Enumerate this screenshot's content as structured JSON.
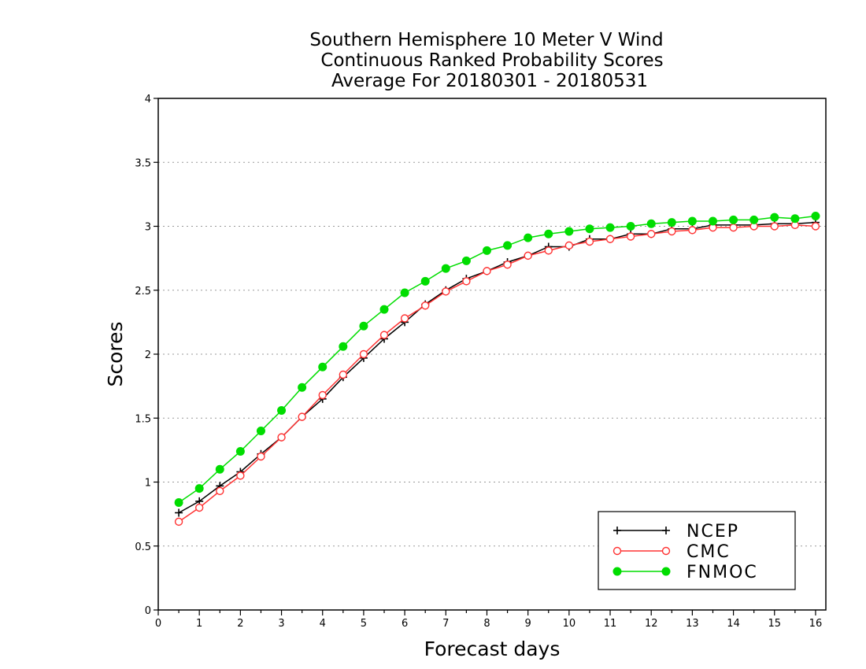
{
  "chart_data": {
    "type": "line",
    "title": [
      "Southern Hemisphere 10 Meter V Wind",
      "Continuous Ranked Probability Scores",
      "Average For 20180301 - 20180531"
    ],
    "xlabel": "Forecast days",
    "ylabel": "Scores",
    "xlim": [
      0,
      16.25
    ],
    "ylim": [
      0,
      4
    ],
    "x_ticks": [
      "0",
      "1",
      "2",
      "3",
      "4",
      "5",
      "6",
      "7",
      "8",
      "9",
      "10",
      "11",
      "12",
      "13",
      "14",
      "15",
      "16"
    ],
    "y_ticks": [
      "0",
      "0.5",
      "1",
      "1.5",
      "2",
      "2.5",
      "3",
      "3.5",
      "4"
    ],
    "y_tick_values": [
      0,
      0.5,
      1,
      1.5,
      2,
      2.5,
      3,
      3.5,
      4
    ],
    "grid": "horizontal dotted",
    "legend_position": "bottom-right",
    "x": [
      0.5,
      1,
      1.5,
      2,
      2.5,
      3,
      3.5,
      4,
      4.5,
      5,
      5.5,
      6,
      6.5,
      7,
      7.5,
      8,
      8.5,
      9,
      9.5,
      10,
      10.5,
      11,
      11.5,
      12,
      12.5,
      13,
      13.5,
      14,
      14.5,
      15,
      15.5,
      16
    ],
    "series": [
      {
        "name": "NCEP",
        "color": "#000000",
        "marker": "plus",
        "values": [
          0.76,
          0.85,
          0.97,
          1.08,
          1.22,
          1.35,
          1.51,
          1.65,
          1.82,
          1.97,
          2.12,
          2.25,
          2.39,
          2.5,
          2.59,
          2.65,
          2.72,
          2.77,
          2.84,
          2.84,
          2.9,
          2.9,
          2.94,
          2.94,
          2.98,
          2.98,
          3.01,
          3.01,
          3.01,
          3.02,
          3.02,
          3.03
        ]
      },
      {
        "name": "CMC",
        "color": "#ff3333",
        "marker": "open-circle",
        "values": [
          0.69,
          0.8,
          0.93,
          1.05,
          1.2,
          1.35,
          1.51,
          1.68,
          1.84,
          2.0,
          2.15,
          2.28,
          2.38,
          2.49,
          2.57,
          2.65,
          2.7,
          2.77,
          2.81,
          2.85,
          2.88,
          2.9,
          2.92,
          2.94,
          2.96,
          2.97,
          2.99,
          2.99,
          3.0,
          3.0,
          3.01,
          3.0
        ]
      },
      {
        "name": "FNMOC",
        "color": "#00dd00",
        "marker": "filled-circle",
        "values": [
          0.84,
          0.95,
          1.1,
          1.24,
          1.4,
          1.56,
          1.74,
          1.9,
          2.06,
          2.22,
          2.35,
          2.48,
          2.57,
          2.67,
          2.73,
          2.81,
          2.85,
          2.91,
          2.94,
          2.96,
          2.98,
          2.99,
          3.0,
          3.02,
          3.03,
          3.04,
          3.04,
          3.05,
          3.05,
          3.07,
          3.06,
          3.08
        ]
      }
    ]
  }
}
